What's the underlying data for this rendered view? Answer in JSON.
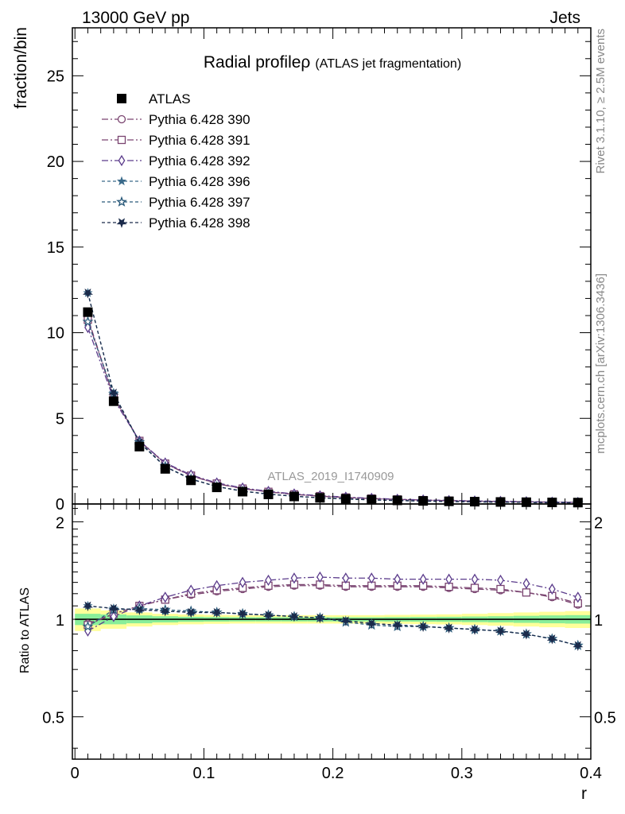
{
  "header": {
    "left": "13000 GeV pp",
    "right": "Jets"
  },
  "side_labels": {
    "rivet": "Rivet 3.1.10, ≥ 2.5M events",
    "mcplots": "mcplots.cern.ch [arXiv:1306.3436]"
  },
  "chart_data": {
    "type": "line",
    "title": "Radial profile",
    "title_symbol": "ρ",
    "subtitle": "(ATLAS jet fragmentation)",
    "watermark": "ATLAS_2019_I1740909",
    "xlabel": "r",
    "ylabel": "fraction/bin",
    "ratio_ylabel": "Ratio to ATLAS",
    "xlim": [
      -0.002,
      0.4
    ],
    "ylim": [
      0,
      27.8
    ],
    "ratio_ylim": [
      0.37,
      2.27
    ],
    "x_ticks": [
      "0",
      "0.1",
      "0.2",
      "0.3",
      "0.4"
    ],
    "y_ticks": [
      "0",
      "5",
      "10",
      "15",
      "20",
      "25"
    ],
    "ratio_ticks": [
      "0.5",
      "1",
      "2"
    ],
    "x": [
      0.01,
      0.03,
      0.05,
      0.07,
      0.09,
      0.11,
      0.13,
      0.15,
      0.17,
      0.19,
      0.21,
      0.23,
      0.25,
      0.27,
      0.29,
      0.31,
      0.33,
      0.35,
      0.37,
      0.39
    ],
    "data": {
      "name": "ATLAS",
      "color": "#000000",
      "values": [
        11.2,
        6.0,
        3.35,
        2.05,
        1.38,
        0.97,
        0.72,
        0.56,
        0.44,
        0.36,
        0.3,
        0.25,
        0.21,
        0.18,
        0.155,
        0.135,
        0.118,
        0.104,
        0.092,
        0.082
      ],
      "band_yellow": [
        0.08,
        0.065,
        0.05,
        0.04,
        0.035,
        0.032,
        0.03,
        0.03,
        0.03,
        0.03,
        0.03,
        0.03,
        0.032,
        0.034,
        0.036,
        0.04,
        0.045,
        0.05,
        0.055,
        0.06
      ],
      "band_green": [
        0.04,
        0.035,
        0.028,
        0.022,
        0.018,
        0.016,
        0.015,
        0.015,
        0.015,
        0.015,
        0.015,
        0.015,
        0.016,
        0.017,
        0.018,
        0.02,
        0.022,
        0.025,
        0.028,
        0.03
      ]
    },
    "series": [
      {
        "name": "Pythia 6.428 390",
        "color": "#7a4470",
        "marker": "circle",
        "dash": "8,3,2,3",
        "ratio": [
          0.97,
          1.04,
          1.1,
          1.15,
          1.19,
          1.22,
          1.24,
          1.26,
          1.27,
          1.27,
          1.26,
          1.26,
          1.26,
          1.26,
          1.25,
          1.24,
          1.23,
          1.21,
          1.17,
          1.11
        ]
      },
      {
        "name": "Pythia 6.428 391",
        "color": "#7a4470",
        "marker": "square",
        "dash": "8,3,2,3",
        "ratio": [
          0.96,
          1.04,
          1.1,
          1.15,
          1.2,
          1.23,
          1.25,
          1.27,
          1.28,
          1.28,
          1.27,
          1.27,
          1.27,
          1.27,
          1.26,
          1.25,
          1.24,
          1.21,
          1.18,
          1.12
        ]
      },
      {
        "name": "Pythia 6.428 392",
        "color": "#5c3c8c",
        "marker": "diamond",
        "dash": "8,3,2,3",
        "ratio": [
          0.92,
          1.02,
          1.1,
          1.17,
          1.23,
          1.27,
          1.3,
          1.32,
          1.34,
          1.35,
          1.34,
          1.34,
          1.33,
          1.33,
          1.33,
          1.33,
          1.32,
          1.29,
          1.24,
          1.17
        ]
      },
      {
        "name": "Pythia 6.428 396",
        "color": "#3a6a8a",
        "marker": "star-filled",
        "dash": "4,3",
        "ratio": [
          1.1,
          1.08,
          1.07,
          1.06,
          1.05,
          1.05,
          1.04,
          1.03,
          1.02,
          1.01,
          0.99,
          0.97,
          0.96,
          0.95,
          0.94,
          0.93,
          0.92,
          0.9,
          0.87,
          0.83
        ]
      },
      {
        "name": "Pythia 6.428 397",
        "color": "#2a5a7a",
        "marker": "star-open",
        "dash": "4,3",
        "ratio": [
          0.95,
          1.07,
          1.08,
          1.07,
          1.06,
          1.05,
          1.04,
          1.03,
          1.02,
          1.01,
          0.98,
          0.96,
          0.95,
          0.95,
          0.94,
          0.93,
          0.92,
          0.9,
          0.87,
          0.83
        ]
      },
      {
        "name": "Pythia 6.428 398",
        "color": "#1a2a4a",
        "marker": "tri-down",
        "dash": "4,3",
        "ratio": [
          1.1,
          1.08,
          1.07,
          1.06,
          1.05,
          1.05,
          1.04,
          1.03,
          1.02,
          1.01,
          0.99,
          0.97,
          0.96,
          0.95,
          0.94,
          0.93,
          0.92,
          0.9,
          0.87,
          0.83
        ]
      }
    ]
  }
}
